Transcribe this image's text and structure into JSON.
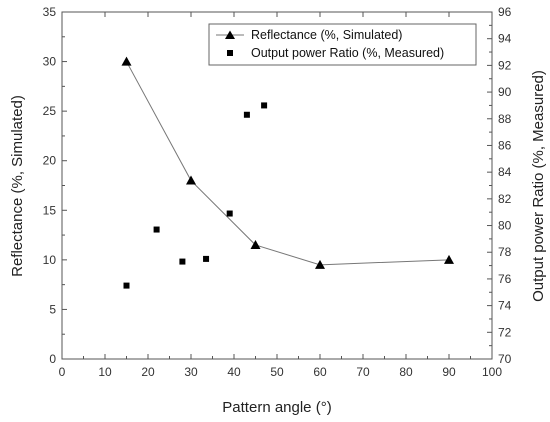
{
  "chart_data": {
    "type": "scatter",
    "title": "",
    "xlabel": "Pattern angle (°)",
    "ylabel_left": "Reflectance (%, Simulated)",
    "ylabel_right": "Output power Ratio (%, Measured)",
    "xlim": [
      0,
      100
    ],
    "ylim_left": [
      0,
      35
    ],
    "ylim_right": [
      70,
      96
    ],
    "x_ticks": [
      0,
      10,
      20,
      30,
      40,
      50,
      60,
      70,
      80,
      90,
      100
    ],
    "y_left_ticks": [
      0,
      5,
      10,
      15,
      20,
      25,
      30,
      35
    ],
    "y_right_ticks": [
      70,
      72,
      74,
      76,
      78,
      80,
      82,
      84,
      86,
      88,
      90,
      92,
      94,
      96
    ],
    "grid": false,
    "legend_position": "top-right",
    "series": [
      {
        "name": "Reflectance (%, Simulated)",
        "axis": "left",
        "marker": "triangle",
        "line": true,
        "color": "#000000",
        "line_color": "#777777",
        "x": [
          15,
          30,
          45,
          60,
          90
        ],
        "y": [
          30,
          18,
          11.5,
          9.5,
          10
        ]
      },
      {
        "name": "Output power Ratio (%, Measured)",
        "axis": "right",
        "marker": "square",
        "line": false,
        "color": "#000000",
        "x": [
          15,
          22,
          28,
          33.5,
          39,
          43,
          47
        ],
        "y": [
          75.5,
          79.7,
          77.3,
          77.5,
          80.9,
          88.3,
          89
        ]
      }
    ]
  }
}
